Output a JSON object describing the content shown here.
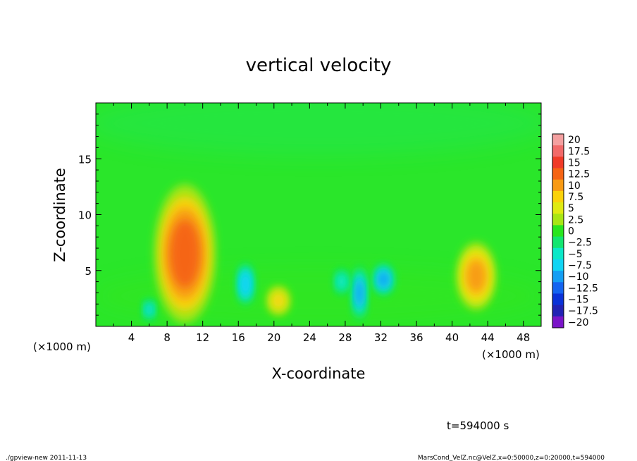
{
  "chart_data": {
    "type": "heatmap",
    "title": "vertical velocity",
    "xlabel": "X-coordinate",
    "ylabel": "Z-coordinate",
    "xunit_left": "(×1000 m)",
    "xunit_right": "(×1000 m)",
    "xlim": [
      0,
      50
    ],
    "ylim": [
      0,
      20
    ],
    "xticks": [
      4,
      8,
      12,
      16,
      20,
      24,
      28,
      32,
      36,
      40,
      44,
      48
    ],
    "yticks": [
      5,
      10,
      15
    ],
    "colorbar": {
      "levels": [
        20,
        17.5,
        15,
        12.5,
        10,
        7.5,
        5,
        2.5,
        0,
        -2.5,
        -5,
        -7.5,
        -10,
        -12.5,
        -15,
        -17.5,
        -20
      ],
      "labels": [
        "20",
        "17.5",
        "15",
        "12.5",
        "10",
        "7.5",
        "5",
        "2.5",
        "0",
        "−2.5",
        "−5",
        "−7.5",
        "−10",
        "−12.5",
        "−15",
        "−17.5",
        "−20"
      ],
      "colors": [
        "#f4a0a0",
        "#f26a6a",
        "#f03a28",
        "#f56414",
        "#f89a14",
        "#fbd20a",
        "#e0ea12",
        "#a8e614",
        "#28e61e",
        "#12e670",
        "#0ae8c8",
        "#10d4f4",
        "#149ef4",
        "#1464f0",
        "#0a32d8",
        "#2222b4",
        "#7a14c8"
      ]
    },
    "features": [
      {
        "x": 10.0,
        "z": 6.5,
        "value": 13.5
      },
      {
        "x": 42.7,
        "z": 4.5,
        "value": 11.0
      },
      {
        "x": 20.5,
        "z": 2.3,
        "value": 7.0
      },
      {
        "x": 32.3,
        "z": 4.2,
        "value": -11.0
      },
      {
        "x": 29.6,
        "z": 3.0,
        "value": -10.0
      },
      {
        "x": 16.8,
        "z": 3.8,
        "value": -8.5
      },
      {
        "x": 6.0,
        "z": 1.5,
        "value": -7.0
      },
      {
        "x": 27.6,
        "z": 4.0,
        "value": -6.0
      }
    ]
  },
  "time_label": "t=594000 s",
  "footer": {
    "left": "./gpview-new  2011-11-13",
    "right": "MarsCond_VelZ.nc@VelZ,x=0:50000,z=0:20000,t=594000"
  }
}
